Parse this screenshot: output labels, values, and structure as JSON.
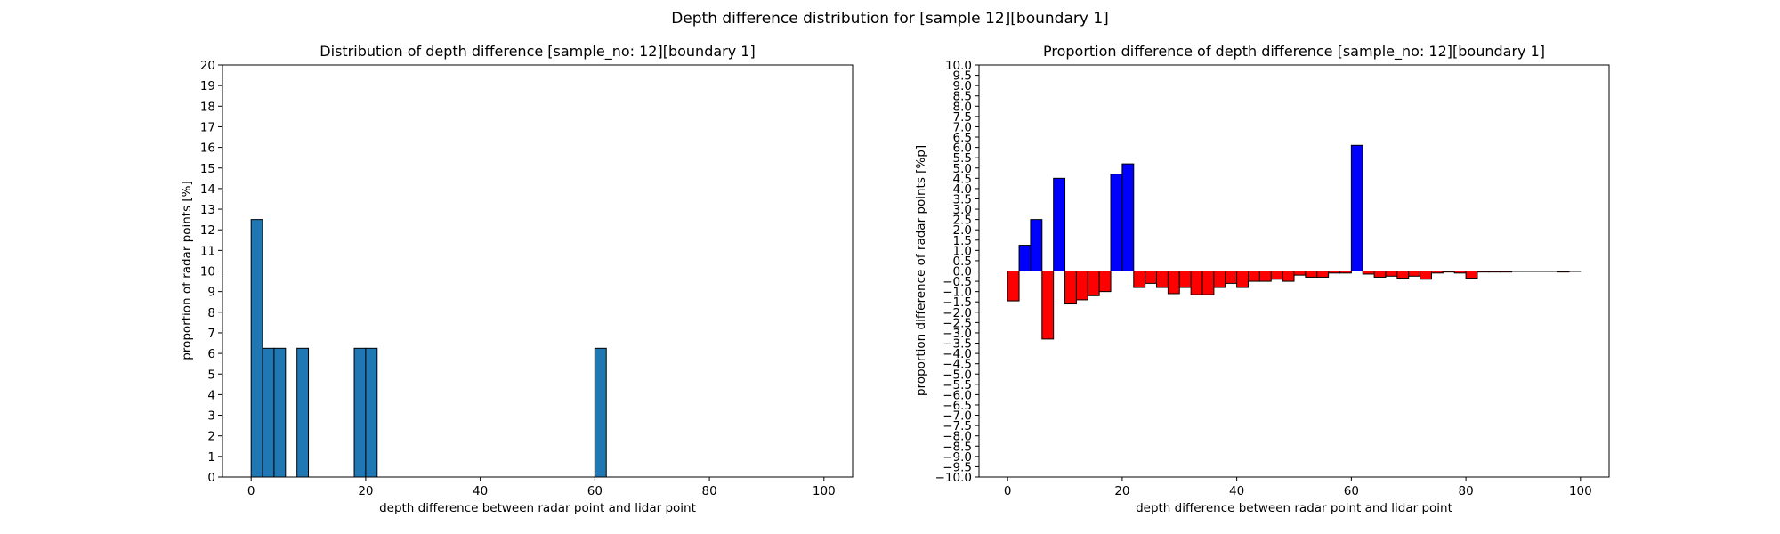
{
  "figure": {
    "suptitle": "Depth difference distribution for [sample 12][boundary 1]"
  },
  "chart_data": [
    {
      "type": "bar",
      "title": "Distribution of depth difference [sample_no: 12][boundary 1]",
      "xlabel": "depth difference between radar point and lidar point",
      "ylabel": "proportion of radar points [%]",
      "xlim": [
        -5,
        105
      ],
      "ylim": [
        0,
        20
      ],
      "xticks": [
        0,
        20,
        40,
        60,
        80,
        100
      ],
      "yticks": [
        0,
        1,
        2,
        3,
        4,
        5,
        6,
        7,
        8,
        9,
        10,
        11,
        12,
        13,
        14,
        15,
        16,
        17,
        18,
        19,
        20
      ],
      "bin_width": 2,
      "bar_color": "#1f77b4",
      "edge_color": "#000000",
      "bins": [
        0,
        2,
        4,
        8,
        18,
        20,
        60
      ],
      "values": [
        12.5,
        6.25,
        6.25,
        6.25,
        6.25,
        6.25,
        6.25
      ]
    },
    {
      "type": "bar",
      "title": "Proportion difference of depth difference [sample_no: 12][boundary 1]",
      "xlabel": "depth difference between radar point and lidar point",
      "ylabel": "proportion difference of radar points [%p]",
      "xlim": [
        -5,
        105
      ],
      "ylim": [
        -10,
        10
      ],
      "xticks": [
        0,
        20,
        40,
        60,
        80,
        100
      ],
      "yticks": [
        -10.0,
        -9.5,
        -9.0,
        -8.5,
        -8.0,
        -7.5,
        -7.0,
        -6.5,
        -6.0,
        -5.5,
        -5.0,
        -4.5,
        -4.0,
        -3.5,
        -3.0,
        -2.5,
        -2.0,
        -1.5,
        -1.0,
        -0.5,
        0.0,
        0.5,
        1.0,
        1.5,
        2.0,
        2.5,
        3.0,
        3.5,
        4.0,
        4.5,
        5.0,
        5.5,
        6.0,
        6.5,
        7.0,
        7.5,
        8.0,
        8.5,
        9.0,
        9.5,
        10.0
      ],
      "bin_width": 2,
      "positive_color": "#0000ff",
      "negative_color": "#ff0000",
      "edge_color": "#000000",
      "bins": [
        0,
        2,
        4,
        6,
        8,
        10,
        12,
        14,
        16,
        18,
        20,
        22,
        24,
        26,
        28,
        30,
        32,
        34,
        36,
        38,
        40,
        42,
        44,
        46,
        48,
        50,
        52,
        54,
        56,
        58,
        60,
        62,
        64,
        66,
        68,
        70,
        72,
        74,
        76,
        78,
        80,
        82,
        84,
        86,
        88,
        90,
        92,
        94,
        96,
        98
      ],
      "values": [
        -1.45,
        1.25,
        2.5,
        -3.3,
        4.5,
        -1.6,
        -1.4,
        -1.2,
        -1.0,
        4.7,
        5.2,
        -0.8,
        -0.6,
        -0.8,
        -1.1,
        -0.8,
        -1.15,
        -1.15,
        -0.8,
        -0.6,
        -0.8,
        -0.5,
        -0.5,
        -0.4,
        -0.5,
        -0.2,
        -0.3,
        -0.3,
        -0.1,
        -0.1,
        6.1,
        -0.15,
        -0.3,
        -0.25,
        -0.35,
        -0.25,
        -0.4,
        -0.1,
        -0.05,
        -0.1,
        -0.35,
        -0.05,
        -0.05,
        -0.05,
        -0.02,
        -0.02,
        -0.02,
        -0.02,
        -0.05,
        -0.02
      ]
    }
  ]
}
